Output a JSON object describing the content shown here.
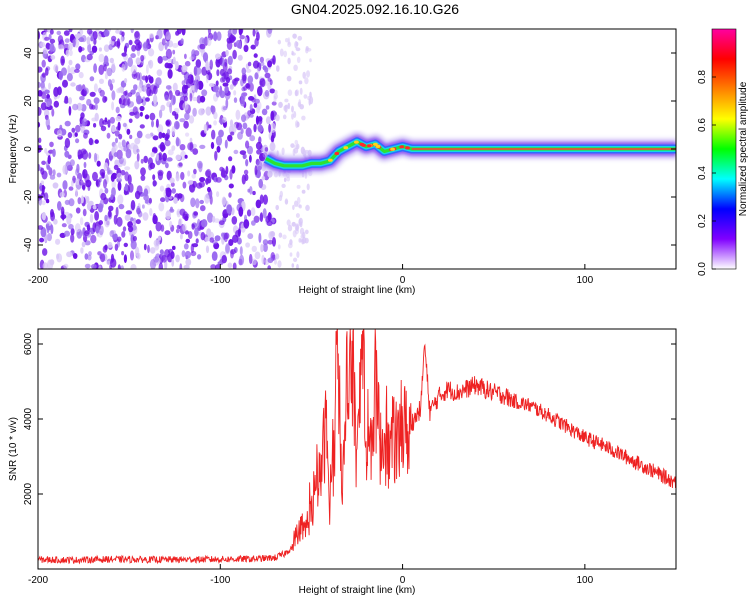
{
  "figure": {
    "title": "GN04.2025.092.16.10.G26"
  },
  "colors": {
    "snr_line": "#ee2222",
    "track_center": "#ff3b3b",
    "track_core": "#2fe02f",
    "track_edge": "#2f6bff",
    "noise_dark": "#6a10e6",
    "noise_mid": "#9b6cf0",
    "noise_light": "#d9c8f7"
  },
  "chart_data": [
    {
      "type": "heatmap",
      "title": "GN04.2025.092.16.10.G26",
      "xlabel": "Height of straight line (km)",
      "ylabel": "Frequency (Hz)",
      "xlim": [
        -200,
        150
      ],
      "ylim": [
        -50,
        50
      ],
      "xticks": [
        -200,
        -100,
        0,
        100
      ],
      "yticks": [
        -40,
        -20,
        0,
        20,
        40
      ],
      "colorbar": {
        "label": "Normalized spectral amplitude",
        "range": [
          0,
          1
        ],
        "ticks": [
          "0.0",
          "0.2",
          "0.4",
          "0.6",
          "0.8"
        ],
        "colormap": [
          "#ffffff",
          "#8000ff",
          "#0000ff",
          "#00ffff",
          "#00ff00",
          "#ffff00",
          "#ff8000",
          "#ff0000",
          "#ff00a0"
        ]
      },
      "noise_region_x": [
        -200,
        -70
      ],
      "track": {
        "x": [
          -75,
          -70,
          -65,
          -60,
          -55,
          -50,
          -45,
          -40,
          -35,
          -30,
          -25,
          -20,
          -15,
          -10,
          -5,
          0,
          5,
          10,
          20,
          40,
          60,
          80,
          100,
          120,
          150
        ],
        "y": [
          -4,
          -6,
          -7,
          -7,
          -7,
          -6,
          -6,
          -5,
          -1,
          1,
          3,
          1,
          2,
          -1,
          0,
          1,
          0,
          0,
          0,
          0,
          0,
          0,
          0,
          0,
          0
        ]
      }
    },
    {
      "type": "line",
      "title": "",
      "xlabel": "Height of straight line (km)",
      "ylabel": "SNR (10 * v/v)",
      "xlim": [
        -200,
        150
      ],
      "ylim": [
        0,
        6400
      ],
      "xticks": [
        -200,
        -100,
        0,
        100
      ],
      "yticks": [
        2000,
        4000,
        6000
      ],
      "series": [
        {
          "name": "SNR",
          "x": [
            -200,
            -180,
            -160,
            -140,
            -120,
            -100,
            -80,
            -70,
            -65,
            -60,
            -55,
            -50,
            -45,
            -42,
            -40,
            -38,
            -35,
            -33,
            -30,
            -27,
            -25,
            -22,
            -20,
            -18,
            -15,
            -12,
            -10,
            -8,
            -5,
            -3,
            0,
            3,
            5,
            8,
            10,
            12,
            15,
            20,
            25,
            30,
            35,
            40,
            45,
            50,
            55,
            60,
            70,
            80,
            90,
            100,
            110,
            120,
            130,
            140,
            150
          ],
          "y": [
            250,
            240,
            260,
            250,
            250,
            260,
            270,
            300,
            400,
            600,
            900,
            1500,
            2500,
            3800,
            1800,
            2800,
            5500,
            2200,
            4500,
            5600,
            2600,
            6300,
            3000,
            2900,
            4900,
            3200,
            3600,
            3000,
            3500,
            3200,
            3800,
            3600,
            3900,
            4100,
            4300,
            6000,
            4200,
            4600,
            4800,
            4700,
            4800,
            4900,
            4800,
            4700,
            4650,
            4500,
            4350,
            4100,
            3800,
            3500,
            3300,
            3050,
            2800,
            2550,
            2300
          ]
        }
      ]
    }
  ]
}
